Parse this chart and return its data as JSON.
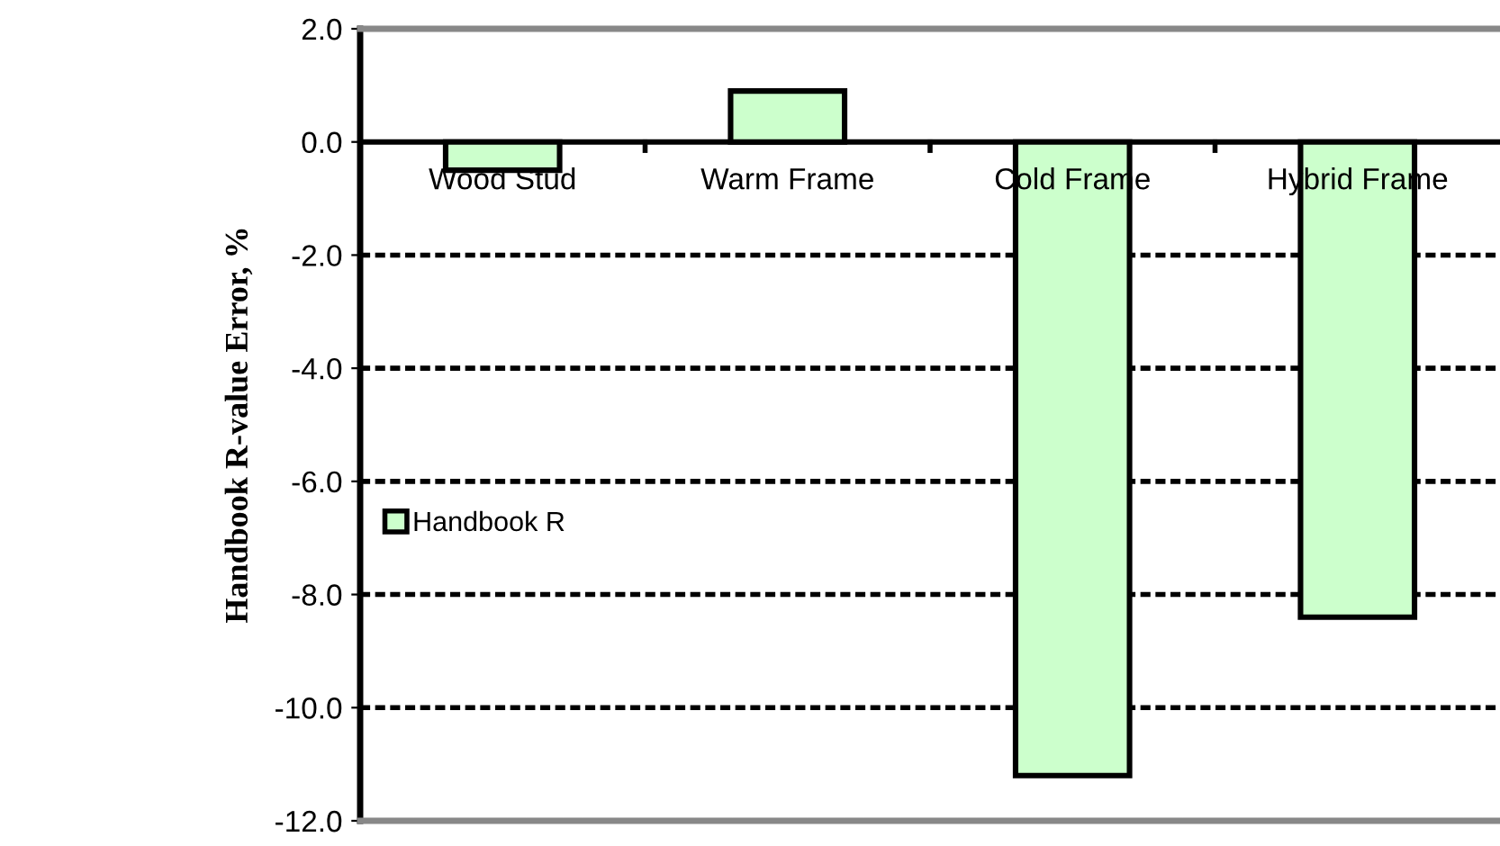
{
  "chart_data": {
    "type": "bar",
    "ylabel": "Handbook R-value Error, %",
    "categories": [
      "Wood Stud",
      "Warm Frame",
      "Cold Frame",
      "Hybrid Frame"
    ],
    "series": [
      {
        "name": "Handbook R",
        "color": "#ccffcc",
        "values": [
          -0.5,
          0.9,
          -11.2,
          -8.4
        ]
      }
    ],
    "ylim": [
      -12,
      2
    ],
    "yticks": [
      {
        "value": 2,
        "label": "2.0"
      },
      {
        "value": 0,
        "label": "0.0"
      },
      {
        "value": -2,
        "label": "-2.0"
      },
      {
        "value": -4,
        "label": "-4.0"
      },
      {
        "value": -6,
        "label": "-6.0"
      },
      {
        "value": -8,
        "label": "-8.0"
      },
      {
        "value": -10,
        "label": "-10.0"
      },
      {
        "value": -12,
        "label": "-12.0"
      }
    ],
    "grid": "y",
    "legend": "left"
  }
}
